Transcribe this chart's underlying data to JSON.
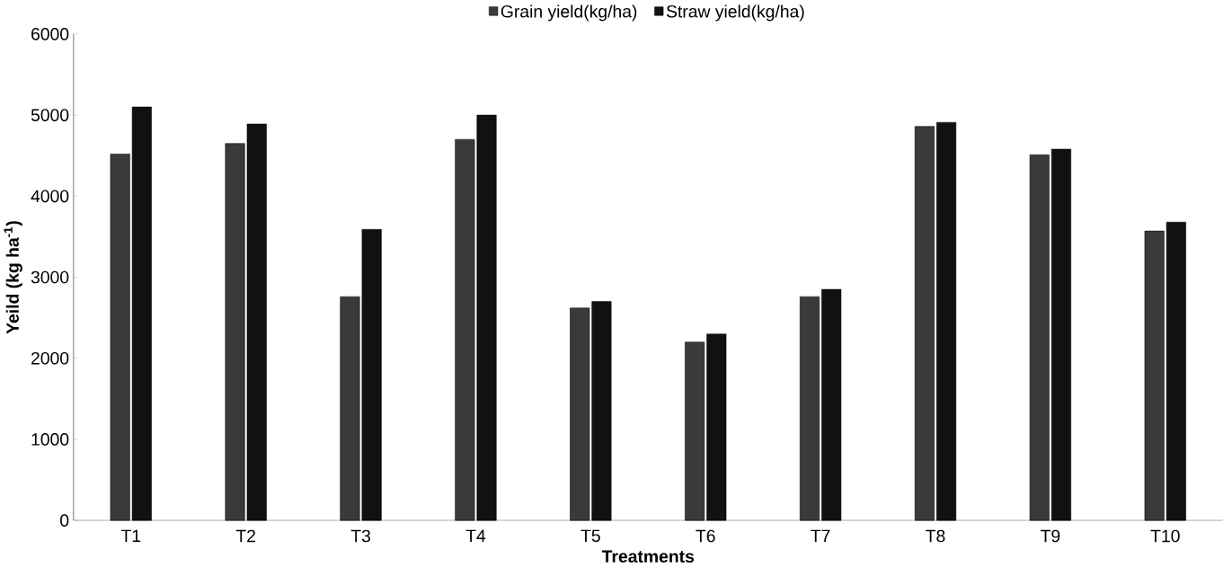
{
  "chart_data": {
    "type": "bar",
    "xlabel": "Treatments",
    "ylabel": "Yeild (kg ha$^{-1}$)",
    "categories": [
      "T1",
      "T2",
      "T3",
      "T4",
      "T5",
      "T6",
      "T7",
      "T8",
      "T9",
      "T10"
    ],
    "series": [
      {
        "name": "Grain yield(kg/ha)",
        "color": "#3a3a3a",
        "values": [
          4520,
          4650,
          2760,
          4700,
          2620,
          2200,
          2760,
          4860,
          4510,
          3570
        ]
      },
      {
        "name": "Straw yield(kg/ha)",
        "color": "#111111",
        "values": [
          5100,
          4890,
          3590,
          5000,
          2700,
          2300,
          2850,
          4910,
          4580,
          3680
        ]
      }
    ],
    "ylim": [
      0,
      6000
    ],
    "yticks": [
      0,
      1000,
      2000,
      3000,
      4000,
      5000,
      6000
    ],
    "grid": false,
    "legend": "top"
  }
}
